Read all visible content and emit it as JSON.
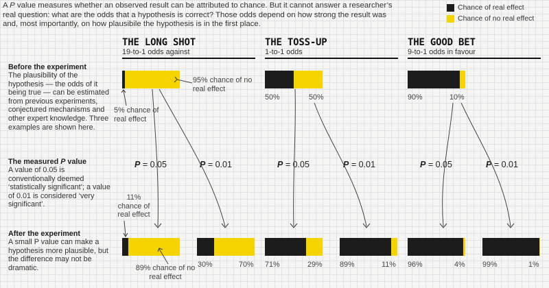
{
  "intro": {
    "text_before": "A ",
    "text_italic": "P",
    "text_after": " value measures whether an observed result can be attributed to chance. But it cannot answer a researcher’s real question: what are the odds that a hypothesis is correct? Those odds depend on how strong the result was and, most importantly, on how plausibile the hypothesis is in the first place."
  },
  "legend": {
    "real_label": "Chance of real effect",
    "no_real_label": "Chance of no real effect",
    "real_color": "#1c1c1c",
    "no_real_color": "#f5d400"
  },
  "sections": {
    "before_head": "Before the experiment",
    "before_body": "The plausibility of the hypothesis — the odds of it being true — can be estimated from previous experiments, conjectured mechanisms and other expert knowledge. Three examples are shown here.",
    "measured_head_a": "The measured ",
    "measured_head_p": "P",
    "measured_head_b": " value",
    "measured_body": "A value of 0.05 is conventionally deemed ‘statistically significant’; a value of 0.01 is considered ‘very significant’.",
    "after_head": "After the experiment",
    "after_body": "A small P value can make a hypothesis more plausible, but the difference may not be dramatic."
  },
  "p_labels": {
    "p": "P",
    "eq05": " = 0.05",
    "eq01": " = 0.01"
  },
  "columns": [
    {
      "title": "THE LONG SHOT",
      "subtitle": "19-to-1 odds against",
      "prior": {
        "real": 5,
        "no_real": 95
      },
      "posterior_05": {
        "real": 11,
        "no_real": 89,
        "left_label": "",
        "right_label": ""
      },
      "posterior_01": {
        "real": 30,
        "no_real": 70,
        "left_label": "30%",
        "right_label": "70%"
      }
    },
    {
      "title": "THE TOSS-UP",
      "subtitle": "1-to-1 odds",
      "prior": {
        "real": 50,
        "no_real": 50,
        "left_label": "50%",
        "right_label": "50%"
      },
      "posterior_05": {
        "real": 71,
        "no_real": 29,
        "left_label": "71%",
        "right_label": "29%"
      },
      "posterior_01": {
        "real": 89,
        "no_real": 11,
        "left_label": "89%",
        "right_label": "11%"
      }
    },
    {
      "title": "THE GOOD BET",
      "subtitle": "9-to-1 odds in favour",
      "prior": {
        "real": 90,
        "no_real": 10,
        "left_label": "90%",
        "right_label": "10%"
      },
      "posterior_05": {
        "real": 96,
        "no_real": 4,
        "left_label": "96%",
        "right_label": "4%"
      },
      "posterior_01": {
        "real": 99,
        "no_real": 1,
        "left_label": "99%",
        "right_label": "1%"
      }
    }
  ],
  "annotations": {
    "prior_no_real": "95% chance of no real effect",
    "prior_real": "5% chance of real effect",
    "post_real": "11% chance of real effect",
    "post_no_real": "89% chance of no real effect"
  }
}
